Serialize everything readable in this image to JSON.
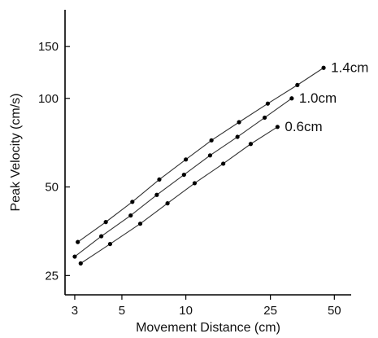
{
  "chart_data": {
    "type": "line",
    "xscale": "log",
    "yscale": "log",
    "xlabel": "Movement Distance (cm)",
    "ylabel": "Peak Velocity (cm/s)",
    "xlim": [
      2.7,
      60
    ],
    "ylim": [
      21.5,
      200
    ],
    "xticks": [
      3,
      5,
      10,
      25,
      50
    ],
    "yticks": [
      25,
      50,
      100,
      150
    ],
    "grid": false,
    "legend": "series labels at line ends",
    "series": [
      {
        "name": "1.4cm",
        "x": [
          3.1,
          4.2,
          5.6,
          7.5,
          10,
          13.2,
          17.8,
          24.3,
          33.5,
          44.5
        ],
        "y": [
          32.5,
          38,
          44.5,
          53,
          62,
          72,
          83,
          96,
          111,
          127
        ]
      },
      {
        "name": "1.0cm",
        "x": [
          3,
          4,
          5.5,
          7.3,
          9.8,
          13,
          17.5,
          23.5,
          31.5
        ],
        "y": [
          29,
          34,
          40,
          47,
          55,
          64,
          74,
          86,
          100
        ]
      },
      {
        "name": "0.6cm",
        "x": [
          3.2,
          4.4,
          6.1,
          8.2,
          11,
          15,
          20.2,
          27
        ],
        "y": [
          27.5,
          32,
          37.5,
          44,
          51.5,
          60,
          70,
          80
        ]
      }
    ]
  }
}
